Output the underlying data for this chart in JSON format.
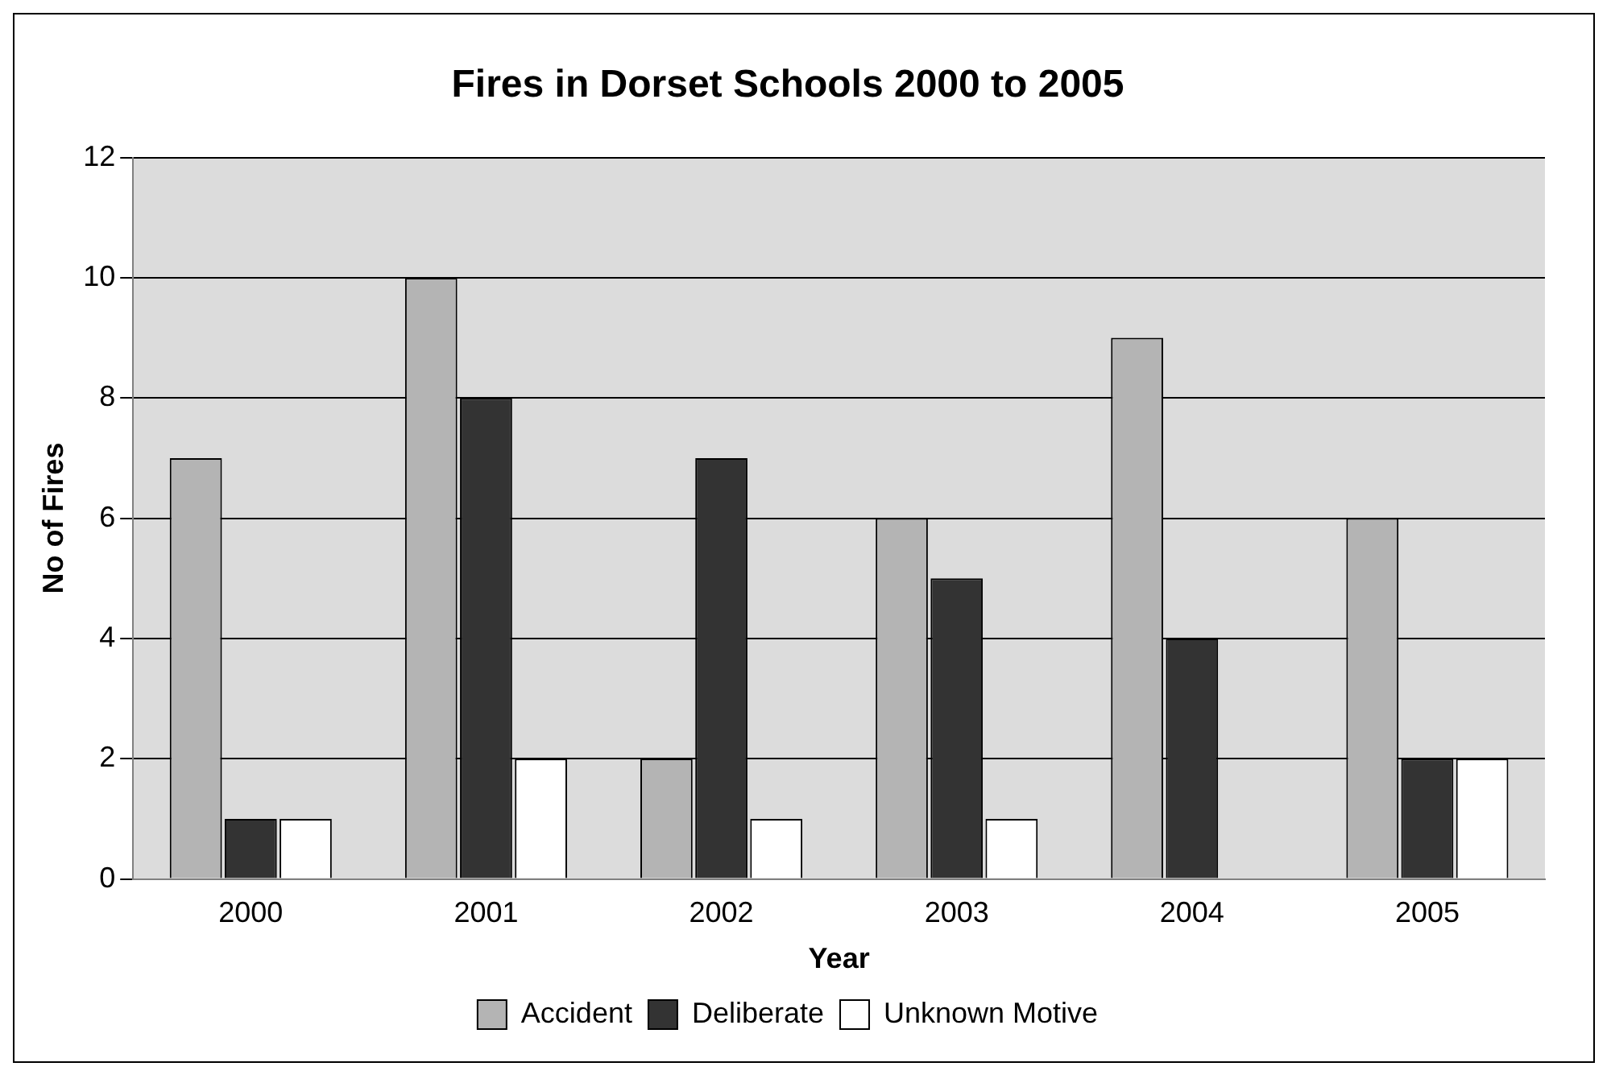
{
  "chart_data": {
    "type": "bar",
    "title": "Fires in Dorset Schools 2000 to 2005",
    "xlabel": "Year",
    "ylabel": "No of Fires",
    "categories": [
      "2000",
      "2001",
      "2002",
      "2003",
      "2004",
      "2005"
    ],
    "series": [
      {
        "name": "Accident",
        "color": "#b4b4b4",
        "values": [
          7,
          10,
          2,
          6,
          9,
          6
        ]
      },
      {
        "name": "Deliberate",
        "color": "#333333",
        "values": [
          1,
          8,
          7,
          5,
          4,
          2
        ]
      },
      {
        "name": "Unknown Motive",
        "color": "#ffffff",
        "values": [
          1,
          2,
          1,
          1,
          0,
          2
        ]
      }
    ],
    "ylim": [
      0,
      12
    ],
    "yticks": [
      0,
      2,
      4,
      6,
      8,
      10,
      12
    ],
    "grid": "y",
    "legend": "bottom"
  }
}
